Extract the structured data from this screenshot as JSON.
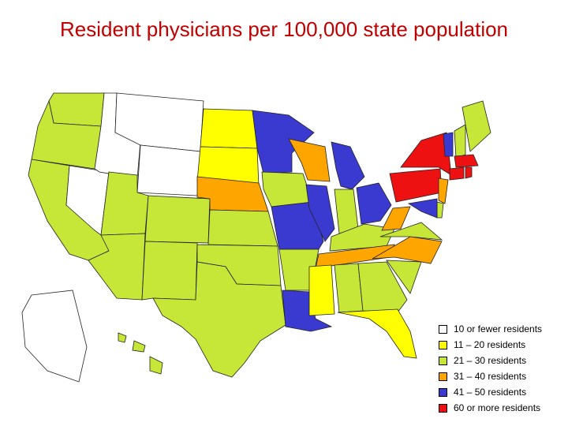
{
  "title": "Resident physicians per 100,000 state population",
  "legend": [
    {
      "label": "10 or fewer residents",
      "color": "#ffffff"
    },
    {
      "label": "11 – 20 residents",
      "color": "#ffff00"
    },
    {
      "label": "21 – 30 residents",
      "color": "#c6e737"
    },
    {
      "label": "31 – 40 residents",
      "color": "#ffa500"
    },
    {
      "label": "41 – 50 residents",
      "color": "#3a3ad0"
    },
    {
      "label": "60 or more residents",
      "color": "#ee1111"
    }
  ],
  "states": [
    {
      "name": "Washington",
      "class": 2
    },
    {
      "name": "Oregon",
      "class": 2
    },
    {
      "name": "California",
      "class": 2
    },
    {
      "name": "Nevada",
      "class": 0
    },
    {
      "name": "Idaho",
      "class": 0
    },
    {
      "name": "Montana",
      "class": 0
    },
    {
      "name": "Wyoming",
      "class": 0
    },
    {
      "name": "Utah",
      "class": 2
    },
    {
      "name": "Arizona",
      "class": 2
    },
    {
      "name": "Colorado",
      "class": 2
    },
    {
      "name": "New Mexico",
      "class": 2
    },
    {
      "name": "North Dakota",
      "class": 1
    },
    {
      "name": "South Dakota",
      "class": 1
    },
    {
      "name": "Nebraska",
      "class": 3
    },
    {
      "name": "Kansas",
      "class": 2
    },
    {
      "name": "Oklahoma",
      "class": 2
    },
    {
      "name": "Texas",
      "class": 2
    },
    {
      "name": "Minnesota",
      "class": 4
    },
    {
      "name": "Iowa",
      "class": 2
    },
    {
      "name": "Missouri",
      "class": 4
    },
    {
      "name": "Arkansas",
      "class": 2
    },
    {
      "name": "Louisiana",
      "class": 4
    },
    {
      "name": "Wisconsin",
      "class": 3
    },
    {
      "name": "Illinois",
      "class": 4
    },
    {
      "name": "Michigan",
      "class": 4
    },
    {
      "name": "Indiana",
      "class": 2
    },
    {
      "name": "Ohio",
      "class": 4
    },
    {
      "name": "Kentucky",
      "class": 2
    },
    {
      "name": "Tennessee",
      "class": 3
    },
    {
      "name": "Mississippi",
      "class": 1
    },
    {
      "name": "Alabama",
      "class": 2
    },
    {
      "name": "Georgia",
      "class": 2
    },
    {
      "name": "Florida",
      "class": 1
    },
    {
      "name": "South Carolina",
      "class": 2
    },
    {
      "name": "North Carolina",
      "class": 3
    },
    {
      "name": "Virginia",
      "class": 2
    },
    {
      "name": "West Virginia",
      "class": 3
    },
    {
      "name": "Pennsylvania",
      "class": 5
    },
    {
      "name": "New York",
      "class": 5
    },
    {
      "name": "New Jersey",
      "class": 3
    },
    {
      "name": "Delaware",
      "class": 2
    },
    {
      "name": "Maryland",
      "class": 4
    },
    {
      "name": "Vermont",
      "class": 4
    },
    {
      "name": "New Hampshire",
      "class": 2
    },
    {
      "name": "Maine",
      "class": 2
    },
    {
      "name": "Massachusetts",
      "class": 5
    },
    {
      "name": "Connecticut",
      "class": 5
    },
    {
      "name": "Rhode Island",
      "class": 5
    },
    {
      "name": "Alaska",
      "class": 0
    },
    {
      "name": "Hawaii",
      "class": 2
    }
  ]
}
